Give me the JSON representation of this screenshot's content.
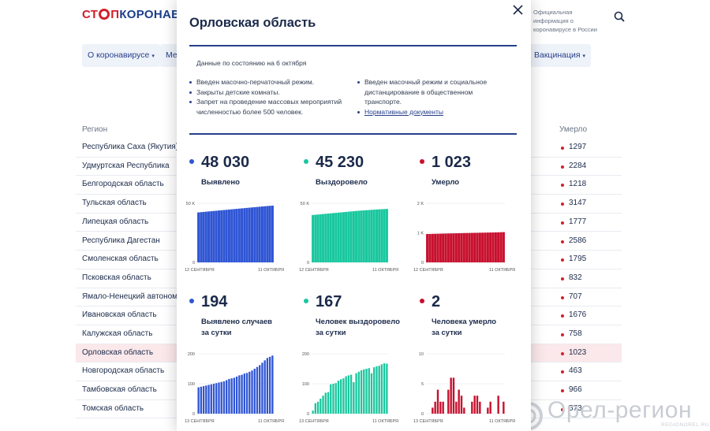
{
  "header": {
    "logo_part1": "СТ",
    "logo_part2": "П",
    "logo_part3": "КОРОНАВИ",
    "official_info": "Официальная информация о коронавирусе в России"
  },
  "nav": {
    "about": "О коронавирусе",
    "partial": "Ме",
    "vaccination": "Вакцинация"
  },
  "table": {
    "col_region": "Регион",
    "col_deaths": "Умерло",
    "rows": [
      {
        "region": "Республика Саха (Якутия)",
        "deaths": "1297"
      },
      {
        "region": "Удмуртская Республика",
        "deaths": "2284"
      },
      {
        "region": "Белгородская область",
        "deaths": "1218"
      },
      {
        "region": "Тульская область",
        "deaths": "3147"
      },
      {
        "region": "Липецкая область",
        "deaths": "1777"
      },
      {
        "region": "Республика Дагестан",
        "deaths": "2586"
      },
      {
        "region": "Смоленская область",
        "deaths": "1795"
      },
      {
        "region": "Псковская область",
        "deaths": "832"
      },
      {
        "region": "Ямало-Ненецкий автоном",
        "deaths": "707"
      },
      {
        "region": "Ивановская область",
        "deaths": "1676"
      },
      {
        "region": "Калужская область",
        "deaths": "758"
      },
      {
        "region": "Орловская область",
        "deaths": "1023"
      },
      {
        "region": "Новгородская область",
        "deaths": "463"
      },
      {
        "region": "Тамбовская область",
        "deaths": "966"
      },
      {
        "region": "Томская область",
        "deaths": "573"
      }
    ]
  },
  "modal": {
    "title": "Орловская область",
    "as_of": "Данные по состоянию на 6 октября",
    "left_bullets": [
      "Введен масочно-перчаточный режим.",
      "Закрыты детские комнаты.",
      "Запрет на проведение массовых мероприятий численностью более 500 человек."
    ],
    "right_bullets": [
      "Введен масочный режим и социальное дистанцирование в общественном транспорте."
    ],
    "docs_link": "Нормативные документы",
    "stats": [
      {
        "value": "48 030",
        "label1": "Выявлено",
        "label2": "",
        "color": "#2f55d4"
      },
      {
        "value": "45 230",
        "label1": "Выздоровело",
        "label2": "",
        "color": "#19c79e"
      },
      {
        "value": "1 023",
        "label1": "Умерло",
        "label2": "",
        "color": "#c8102e"
      },
      {
        "value": "194",
        "label1": "Выявлено случаев",
        "label2": "за сутки",
        "color": "#2f55d4"
      },
      {
        "value": "167",
        "label1": "Человек выздоровело",
        "label2": "за сутки",
        "color": "#19c79e"
      },
      {
        "value": "2",
        "label1": "Человека умерло",
        "label2": "за сутки",
        "color": "#c8102e"
      }
    ]
  },
  "chart_data": [
    {
      "type": "bar",
      "name": "total-detected",
      "color": "#2f55d4",
      "ylim": [
        0,
        50000
      ],
      "yticks": [
        0,
        50000
      ],
      "ytick_labels": [
        "0",
        "50 K"
      ],
      "x_start": "12 СЕНТЯБРЯ",
      "x_end": "11 ОКТЯБРЯ",
      "values": [
        42300,
        42500,
        42700,
        42900,
        43100,
        43300,
        43500,
        43700,
        43900,
        44100,
        44300,
        44500,
        44700,
        44900,
        45100,
        45300,
        45500,
        45700,
        45900,
        46100,
        46300,
        46500,
        46700,
        46900,
        47100,
        47300,
        47500,
        47700,
        47850,
        48030
      ]
    },
    {
      "type": "bar",
      "name": "total-recovered",
      "color": "#19c79e",
      "ylim": [
        0,
        50000
      ],
      "yticks": [
        0,
        50000
      ],
      "ytick_labels": [
        "0",
        "50 K"
      ],
      "x_start": "12 СЕНТЯБРЯ",
      "x_end": "11 ОКТЯБРЯ",
      "values": [
        40100,
        40300,
        40500,
        40700,
        40900,
        41100,
        41300,
        41500,
        41700,
        41900,
        42100,
        42300,
        42500,
        42700,
        42900,
        43100,
        43300,
        43500,
        43700,
        43850,
        44000,
        44150,
        44300,
        44450,
        44600,
        44750,
        44900,
        45000,
        45100,
        45230
      ]
    },
    {
      "type": "bar",
      "name": "total-deaths",
      "color": "#c8102e",
      "ylim": [
        0,
        2000
      ],
      "yticks": [
        0,
        1000,
        2000
      ],
      "ytick_labels": [
        "0",
        "1 K",
        "2 K"
      ],
      "x_start": "12 СЕНТЯБРЯ",
      "x_end": "11 ОКТЯБРЯ",
      "values": [
        960,
        962,
        965,
        967,
        970,
        972,
        975,
        977,
        979,
        981,
        983,
        985,
        987,
        989,
        991,
        993,
        995,
        997,
        999,
        1001,
        1003,
        1005,
        1007,
        1009,
        1011,
        1013,
        1015,
        1017,
        1021,
        1023
      ]
    },
    {
      "type": "bar",
      "name": "daily-detected",
      "color": "#2f55d4",
      "ylim": [
        0,
        200
      ],
      "yticks": [
        0,
        100,
        200
      ],
      "ytick_labels": [
        "0",
        "100",
        "200"
      ],
      "x_start": "13 СЕНТЯБРЯ",
      "x_end": "11 ОКТЯБРЯ",
      "values": [
        88,
        90,
        92,
        94,
        96,
        98,
        100,
        102,
        104,
        106,
        108,
        112,
        116,
        118,
        120,
        124,
        128,
        130,
        134,
        136,
        140,
        144,
        150,
        156,
        162,
        170,
        178,
        186,
        190,
        194
      ]
    },
    {
      "type": "bar",
      "name": "daily-recovered",
      "color": "#19c79e",
      "ylim": [
        0,
        200
      ],
      "yticks": [
        0,
        100,
        200
      ],
      "ytick_labels": [
        "0",
        "100",
        "200"
      ],
      "x_start": "13 СЕНТЯБРЯ",
      "x_end": "11 ОКТЯБРЯ",
      "values": [
        10,
        35,
        40,
        50,
        60,
        70,
        72,
        98,
        100,
        102,
        110,
        115,
        118,
        125,
        128,
        130,
        105,
        135,
        140,
        145,
        148,
        150,
        152,
        135,
        155,
        158,
        160,
        165,
        168,
        167
      ]
    },
    {
      "type": "bar",
      "name": "daily-deaths",
      "color": "#c8102e",
      "ylim": [
        0,
        10
      ],
      "yticks": [
        0,
        5,
        10
      ],
      "ytick_labels": [
        "0",
        "5",
        "10"
      ],
      "x_start": "13 СЕНТЯБРЯ",
      "x_end": "11 ОКТЯБРЯ",
      "values": [
        0,
        0,
        1,
        2,
        4,
        2,
        2,
        0,
        4,
        6,
        6,
        2,
        4,
        3,
        1,
        0,
        0,
        2,
        3,
        3,
        2,
        0,
        0,
        1,
        2,
        0,
        0,
        3,
        0,
        2
      ]
    }
  ]
}
